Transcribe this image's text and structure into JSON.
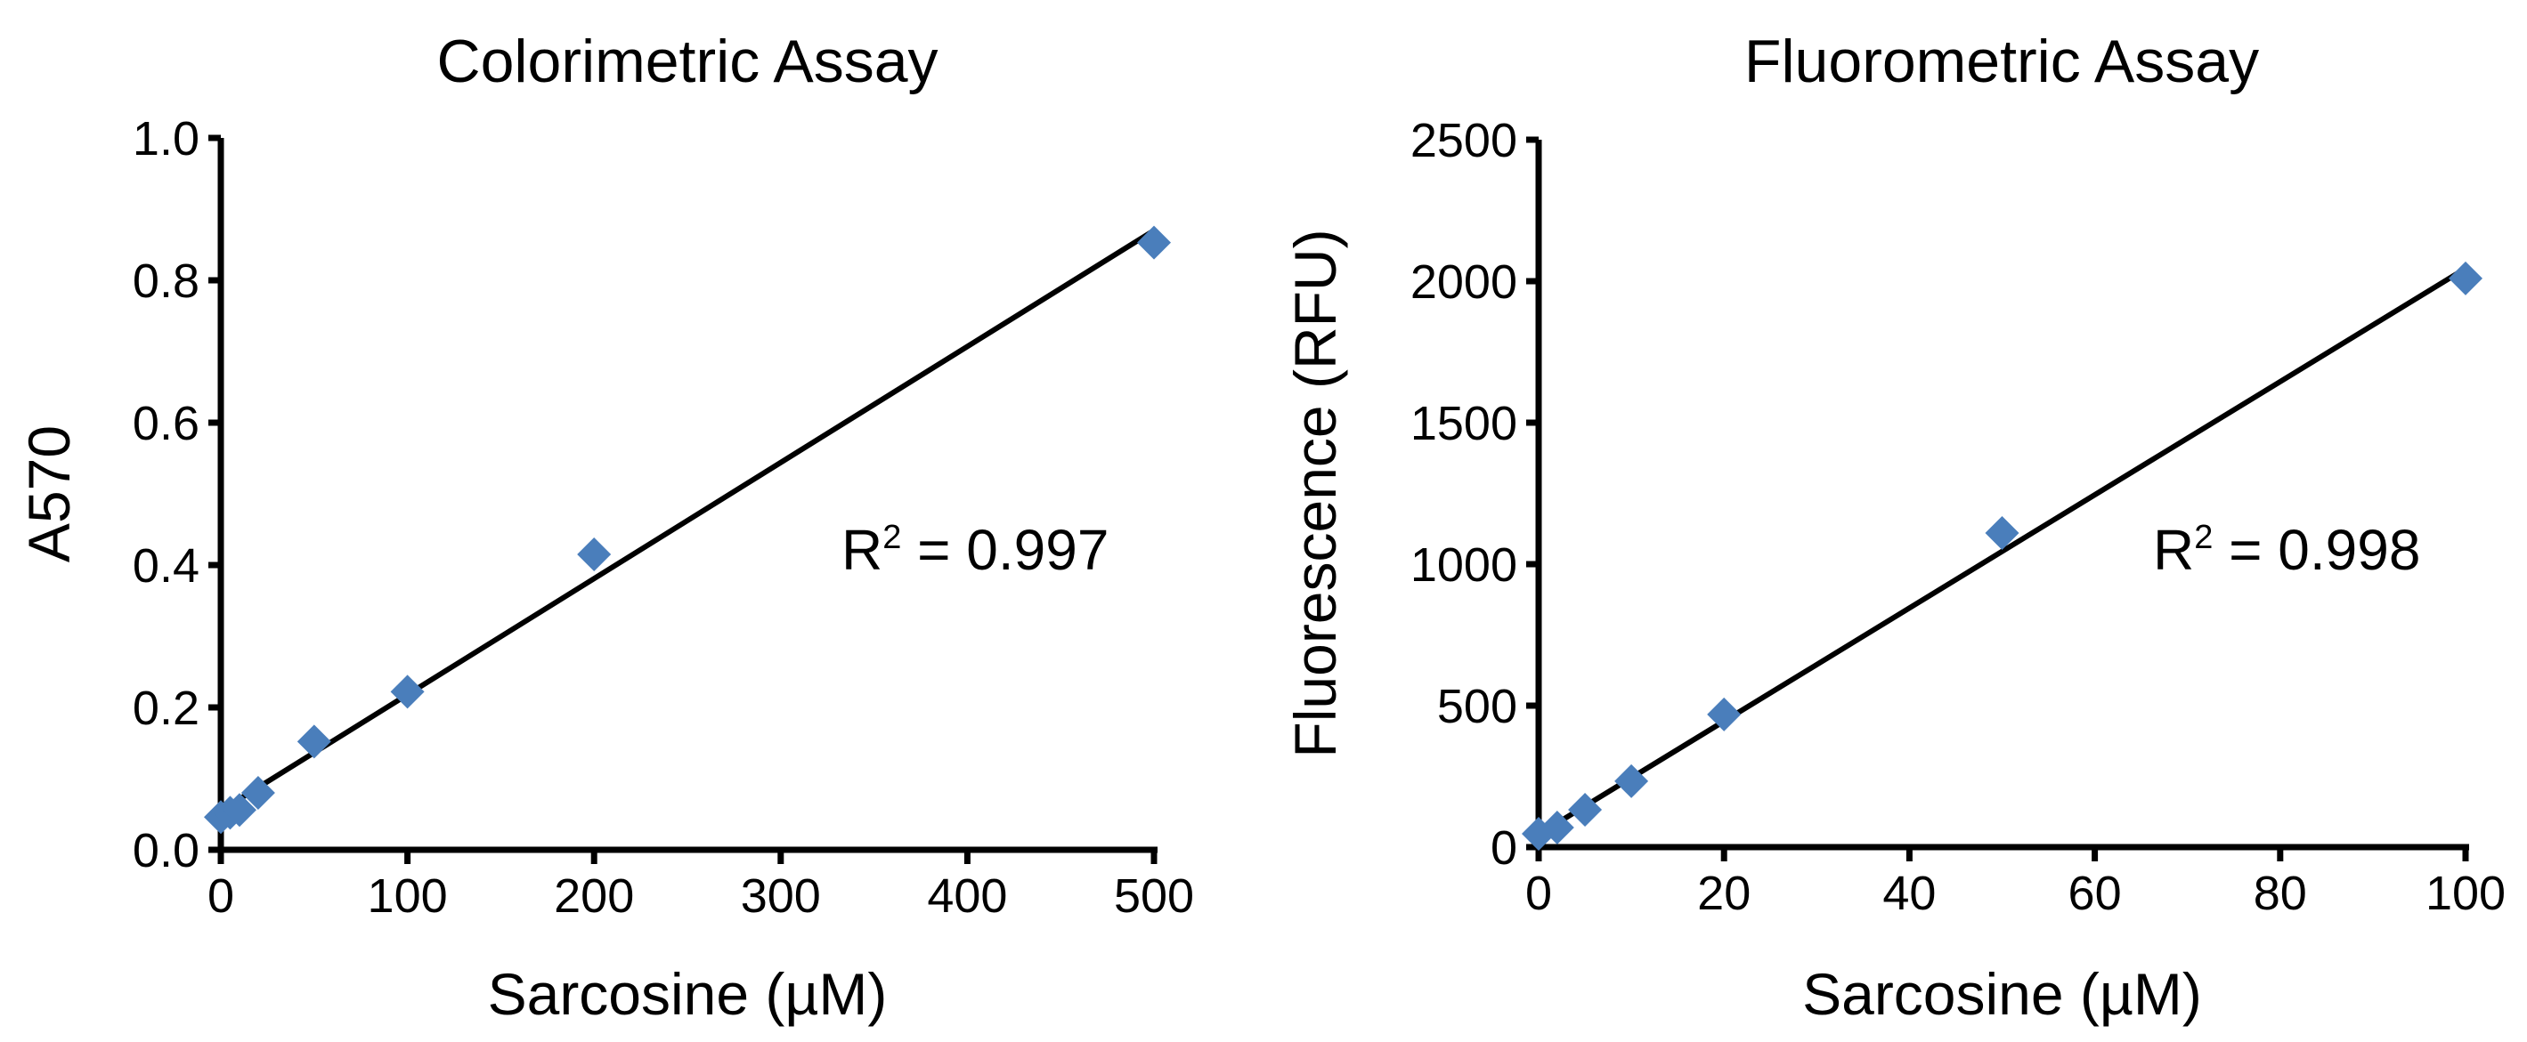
{
  "chart_data": [
    {
      "type": "scatter",
      "title": "Colorimetric Assay",
      "xlabel": "Sarcosine (µM)",
      "ylabel": "A570",
      "xlim": [
        0,
        500
      ],
      "ylim": [
        0,
        1.0
      ],
      "xticks": [
        0,
        100,
        200,
        300,
        400,
        500
      ],
      "yticks": [
        0.0,
        0.2,
        0.4,
        0.6,
        0.8,
        1.0
      ],
      "ytick_labels": [
        "0.0",
        "0.2",
        "0.4",
        "0.6",
        "0.8",
        "1.0"
      ],
      "x": [
        0,
        5,
        10,
        20,
        50,
        100,
        200,
        500
      ],
      "y": [
        0.046,
        0.052,
        0.056,
        0.08,
        0.152,
        0.222,
        0.415,
        0.853
      ],
      "trendline": {
        "type": "linear",
        "slope": 0.00163,
        "intercept": 0.055
      },
      "annotation": {
        "prefix": "R",
        "sup": "2",
        "suffix": " = 0.997"
      },
      "grid": false,
      "marker": "diamond",
      "marker_color": "#4a7ebb",
      "line_color": "#000000"
    },
    {
      "type": "scatter",
      "title": "Fluorometric Assay",
      "xlabel": "Sarcosine (µM)",
      "ylabel": "Fluorescence (RFU)",
      "xlim": [
        0,
        100
      ],
      "ylim": [
        0,
        2500
      ],
      "xticks": [
        0,
        20,
        40,
        60,
        80,
        100
      ],
      "yticks": [
        0,
        500,
        1000,
        1500,
        2000,
        2500
      ],
      "ytick_labels": [
        "0",
        "500",
        "1000",
        "1500",
        "2000",
        "2500"
      ],
      "x": [
        0,
        2,
        5,
        10,
        20,
        50,
        100
      ],
      "y": [
        47,
        69,
        132,
        233,
        469,
        1110,
        2010
      ],
      "trendline": {
        "type": "linear",
        "slope": 20.0,
        "intercept": 45
      },
      "annotation": {
        "prefix": "R",
        "sup": "2",
        "suffix": " = 0.998"
      },
      "grid": false,
      "marker": "diamond",
      "marker_color": "#4a7ebb",
      "line_color": "#000000"
    }
  ]
}
